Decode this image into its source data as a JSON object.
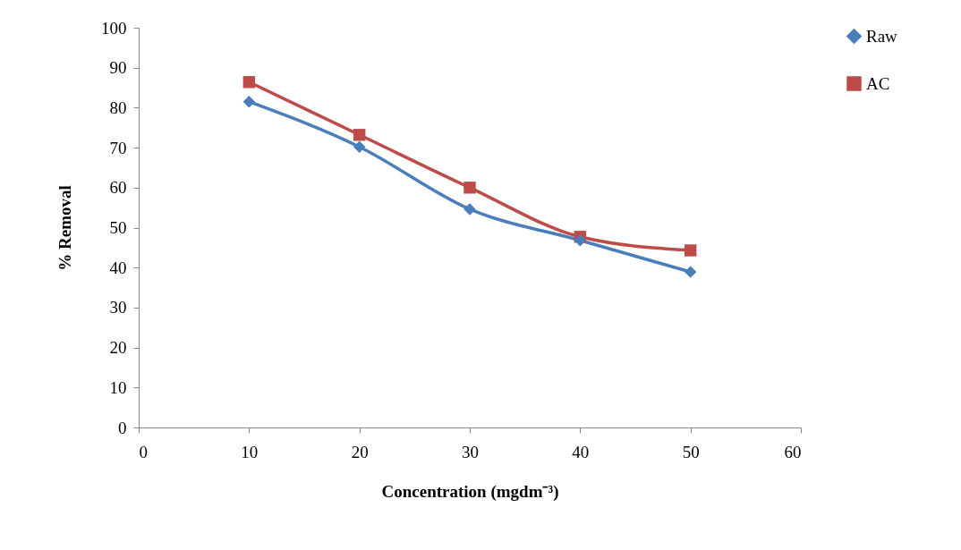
{
  "chart_data": {
    "type": "line",
    "xlabel": "Concentration (mgdm⁻³)",
    "ylabel": "% Removal",
    "x": [
      10,
      20,
      30,
      40,
      50
    ],
    "series": [
      {
        "name": "Raw",
        "color": "#4a7ebb",
        "marker": "diamond",
        "values": [
          81.5,
          70.2,
          54.6,
          46.8,
          38.9
        ]
      },
      {
        "name": "AC",
        "color": "#be4b48",
        "marker": "square",
        "values": [
          86.4,
          73.2,
          60,
          47.7,
          44.3
        ]
      }
    ],
    "xlim": [
      0,
      60
    ],
    "xticks": [
      0,
      10,
      20,
      30,
      40,
      50,
      60
    ],
    "ylim": [
      0,
      100
    ],
    "yticks": [
      0,
      10,
      20,
      30,
      40,
      50,
      60,
      70,
      80,
      90,
      100
    ],
    "grid": false,
    "legend": "right",
    "line_style": "solid"
  }
}
